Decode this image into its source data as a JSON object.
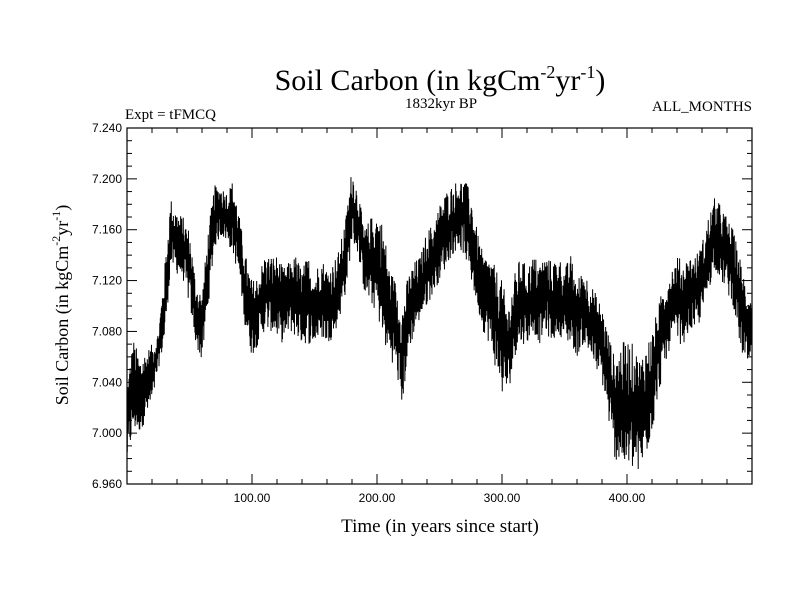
{
  "chart_data": {
    "type": "line",
    "title": {
      "main": "Soil Carbon (in kgCm",
      "sup1": "-2",
      "mid": "yr",
      "sup2": "-1",
      "end": ")"
    },
    "subtitle_left": "Expt = tFMCQ",
    "subtitle_center": "1832kyr BP",
    "subtitle_right": "ALL_MONTHS",
    "xlabel": "Time (in years since start)",
    "ylabel": {
      "main": "Soil Carbon (in kgCm",
      "sup1": "-2",
      "mid": "yr",
      "sup2": "-1",
      "end": ")"
    },
    "xlim": [
      0,
      500
    ],
    "ylim": [
      6.96,
      7.24
    ],
    "x_ticks": [
      100,
      200,
      300,
      400
    ],
    "x_tick_labels": [
      "100.00",
      "200.00",
      "300.00",
      "400.00"
    ],
    "y_ticks": [
      6.96,
      7.0,
      7.04,
      7.08,
      7.12,
      7.16,
      7.2,
      7.24
    ],
    "y_tick_labels": [
      "6.960",
      "7.000",
      "7.040",
      "7.080",
      "7.120",
      "7.160",
      "7.200",
      "7.240"
    ],
    "line_color": "#000000",
    "series": [
      {
        "name": "Soil Carbon",
        "envelope_x": [
          0,
          5,
          10,
          15,
          20,
          25,
          30,
          35,
          40,
          45,
          50,
          55,
          60,
          65,
          70,
          75,
          80,
          85,
          90,
          95,
          100,
          105,
          110,
          115,
          120,
          125,
          130,
          135,
          140,
          145,
          150,
          155,
          160,
          165,
          170,
          175,
          180,
          185,
          190,
          195,
          200,
          205,
          210,
          215,
          220,
          225,
          230,
          235,
          240,
          245,
          250,
          255,
          260,
          265,
          270,
          275,
          280,
          285,
          290,
          295,
          300,
          305,
          310,
          315,
          320,
          325,
          330,
          335,
          340,
          345,
          350,
          355,
          360,
          365,
          370,
          375,
          380,
          385,
          390,
          395,
          400,
          405,
          410,
          415,
          420,
          425,
          430,
          435,
          440,
          445,
          450,
          455,
          460,
          465,
          470,
          475,
          480,
          485,
          490,
          495,
          500
        ],
        "upper": [
          7.04,
          7.075,
          7.06,
          7.065,
          7.07,
          7.08,
          7.13,
          7.185,
          7.175,
          7.17,
          7.16,
          7.12,
          7.11,
          7.16,
          7.195,
          7.195,
          7.19,
          7.2,
          7.17,
          7.14,
          7.12,
          7.125,
          7.14,
          7.14,
          7.14,
          7.13,
          7.135,
          7.14,
          7.13,
          7.14,
          7.125,
          7.14,
          7.13,
          7.135,
          7.145,
          7.17,
          7.21,
          7.19,
          7.16,
          7.17,
          7.175,
          7.165,
          7.13,
          7.12,
          7.1,
          7.125,
          7.135,
          7.14,
          7.16,
          7.165,
          7.18,
          7.19,
          7.195,
          7.2,
          7.2,
          7.19,
          7.16,
          7.14,
          7.14,
          7.13,
          7.12,
          7.1,
          7.125,
          7.14,
          7.13,
          7.14,
          7.135,
          7.14,
          7.135,
          7.14,
          7.13,
          7.14,
          7.12,
          7.13,
          7.12,
          7.11,
          7.1,
          7.08,
          7.06,
          7.07,
          7.075,
          7.07,
          7.06,
          7.07,
          7.08,
          7.1,
          7.12,
          7.13,
          7.14,
          7.135,
          7.14,
          7.14,
          7.15,
          7.17,
          7.185,
          7.18,
          7.17,
          7.16,
          7.14,
          7.12,
          7.11
        ],
        "lower": [
          6.975,
          7.0,
          7.0,
          7.01,
          7.02,
          7.05,
          7.07,
          7.13,
          7.125,
          7.12,
          7.1,
          7.07,
          7.055,
          7.1,
          7.145,
          7.155,
          7.15,
          7.14,
          7.12,
          7.08,
          7.06,
          7.07,
          7.08,
          7.08,
          7.075,
          7.07,
          7.08,
          7.075,
          7.07,
          7.07,
          7.07,
          7.075,
          7.07,
          7.075,
          7.09,
          7.11,
          7.15,
          7.14,
          7.11,
          7.1,
          7.095,
          7.07,
          7.06,
          7.05,
          7.02,
          7.06,
          7.08,
          7.09,
          7.1,
          7.11,
          7.12,
          7.13,
          7.14,
          7.145,
          7.14,
          7.12,
          7.1,
          7.08,
          7.07,
          7.05,
          7.03,
          7.03,
          7.06,
          7.07,
          7.07,
          7.08,
          7.07,
          7.08,
          7.07,
          7.08,
          7.07,
          7.07,
          7.06,
          7.07,
          7.06,
          7.05,
          7.04,
          7.01,
          6.98,
          6.975,
          6.97,
          6.97,
          6.965,
          6.98,
          7.0,
          7.03,
          7.05,
          7.07,
          7.07,
          7.07,
          7.08,
          7.08,
          7.09,
          7.11,
          7.13,
          7.12,
          7.11,
          7.1,
          7.07,
          7.05,
          7.05
        ]
      }
    ]
  }
}
